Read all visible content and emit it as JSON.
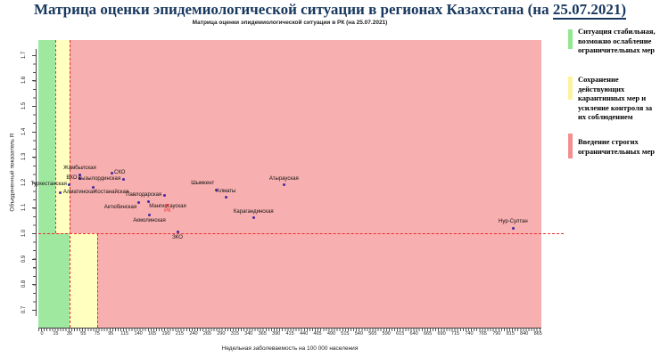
{
  "title": {
    "prefix": "Матрица оценки эпидемиологической ситуации в регионах Казахстана (на ",
    "underlined": "25.07.2021)"
  },
  "chart_data": {
    "type": "scatter",
    "title": "Матрица оценки эпидемиологической ситуации в РК (на 25.07.2021)",
    "xlabel": "Недельная заболеваемость на 100 000 населения",
    "ylabel": "Объединенный показатель R",
    "x_ticks": [
      0,
      15,
      35,
      55,
      75,
      95,
      115,
      140,
      165,
      190,
      215,
      240,
      265,
      290,
      315,
      340,
      365,
      390,
      415,
      440,
      465,
      490,
      515,
      540,
      565,
      590,
      615,
      640,
      665,
      690,
      715,
      740,
      765,
      790,
      815,
      840,
      865
    ],
    "y_ticks": [
      0.7,
      0.8,
      0.9,
      1.0,
      1.1,
      1.2,
      1.3,
      1.4,
      1.5,
      1.6,
      1.7
    ],
    "ylim": [
      0.65,
      1.75
    ],
    "reference_line_R": 1.0,
    "grid": false,
    "legend_position": "right-outside",
    "zones": {
      "above_R1_boundaries": [
        15,
        35
      ],
      "below_R1_boundaries": [
        35,
        75
      ],
      "order": [
        "green",
        "yellow",
        "red"
      ]
    },
    "points": [
      {
        "label": "Жамбылская",
        "x": 50,
        "r": 1.23,
        "pos": "above"
      },
      {
        "label": "ВКО",
        "x": 50,
        "r": 1.215,
        "pos": "left"
      },
      {
        "label": "СКО",
        "x": 96,
        "r": 1.235,
        "pos": "right"
      },
      {
        "label": "Кызылординская",
        "x": 113,
        "r": 1.21,
        "pos": "left"
      },
      {
        "label": "Туркестанская",
        "x": 35,
        "r": 1.19,
        "pos": "left"
      },
      {
        "label": "Костанайская",
        "x": 70,
        "r": 1.18,
        "pos": "below-right"
      },
      {
        "label": "Алматинская",
        "x": 22,
        "r": 1.16,
        "pos": "right"
      },
      {
        "label": "Павлодарская",
        "x": 187,
        "r": 1.15,
        "pos": "left"
      },
      {
        "label": "Актюбинская",
        "x": 140,
        "r": 1.12,
        "pos": "below-left"
      },
      {
        "label": "Мангистауская",
        "x": 158,
        "r": 1.125,
        "pos": "below-right"
      },
      {
        "label": "РК",
        "x": 193,
        "r": 1.11,
        "pos": "below",
        "highlight": true
      },
      {
        "label": "Акмолинская",
        "x": 160,
        "r": 1.07,
        "pos": "below"
      },
      {
        "label": "ЗКО",
        "x": 211,
        "r": 1.005,
        "pos": "below"
      },
      {
        "label": "Шымкент",
        "x": 281,
        "r": 1.17,
        "pos": "above-left"
      },
      {
        "label": "Алматы",
        "x": 299,
        "r": 1.14,
        "pos": "above"
      },
      {
        "label": "Атырауская",
        "x": 404,
        "r": 1.19,
        "pos": "above"
      },
      {
        "label": "Карагандинская",
        "x": 349,
        "r": 1.06,
        "pos": "above"
      },
      {
        "label": "Нур-Султан",
        "x": 820,
        "r": 1.02,
        "pos": "above"
      }
    ]
  },
  "legend": {
    "items": [
      {
        "color_key": "legend_green",
        "label": "Ситуация стабильная, возможно ослабление ограничительных мер"
      },
      {
        "color_key": "legend_yellow",
        "label": "Сохранение действующих карантинных мер и усиление контроля за их соблюдением"
      },
      {
        "color_key": "legend_red",
        "label": "Введение строгих ограничительных мер"
      }
    ]
  },
  "colors": {
    "title": "#17375e",
    "zone_green": "#9fe89f",
    "zone_yellow": "#ffffc0",
    "zone_red": "#f8afaf",
    "legend_green": "#90e890",
    "legend_yellow": "#fbf3a0",
    "legend_red": "#f28f8f",
    "dashed_line": "#ee2c2c",
    "point": "#4328a5",
    "point_rk": "#e03030",
    "axis_text": "#222222"
  }
}
